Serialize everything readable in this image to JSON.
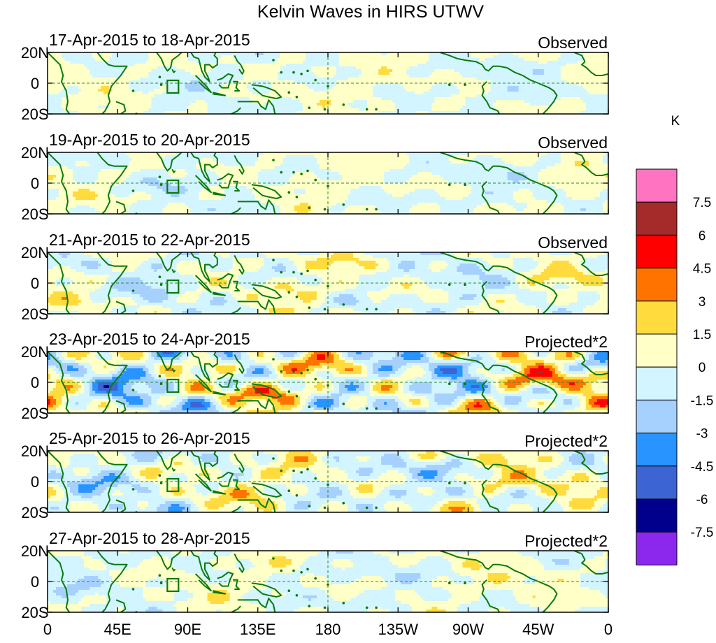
{
  "chart_data": {
    "type": "heatmap",
    "title": "Kelvin Waves in HIRS UTWV",
    "unit": "K",
    "x_ticks": [
      "0",
      "45E",
      "90E",
      "135E",
      "180",
      "135W",
      "90W",
      "45W",
      "0"
    ],
    "y_ticks": [
      "20N",
      "0",
      "20S"
    ],
    "xlim": [
      0,
      360
    ],
    "ylim": [
      -20,
      20
    ],
    "colorbar": {
      "labels": [
        "7.5",
        "6",
        "4.5",
        "3",
        "1.5",
        "0",
        "-1.5",
        "-3",
        "-4.5",
        "-6",
        "-7.5"
      ],
      "colors": [
        "#ff73c0",
        "#a52a2a",
        "#ff0000",
        "#ff7400",
        "#ffdb3e",
        "#ffffc8",
        "#d2f5ff",
        "#a6d1ff",
        "#2894ff",
        "#3c64d2",
        "#00008c",
        "#8c28ee"
      ]
    },
    "panels": [
      {
        "date": "17-Apr-2015 to 18-Apr-2015",
        "type_label": "Observed",
        "shift": 0,
        "amp": 0.5,
        "seed": 1
      },
      {
        "date": "19-Apr-2015 to 20-Apr-2015",
        "type_label": "Observed",
        "shift": 25,
        "amp": 0.55,
        "seed": 2
      },
      {
        "date": "21-Apr-2015 to 22-Apr-2015",
        "type_label": "Observed",
        "shift": 50,
        "amp": 0.8,
        "seed": 3
      },
      {
        "date": "23-Apr-2015 to 24-Apr-2015",
        "type_label": "Projected*2",
        "shift": 75,
        "amp": 1.6,
        "seed": 4
      },
      {
        "date": "25-Apr-2015 to 26-Apr-2015",
        "type_label": "Projected*2",
        "shift": 100,
        "amp": 1.0,
        "seed": 5
      },
      {
        "date": "27-Apr-2015 to 28-Apr-2015",
        "type_label": "Projected*2",
        "shift": 125,
        "amp": 0.6,
        "seed": 6
      }
    ]
  }
}
